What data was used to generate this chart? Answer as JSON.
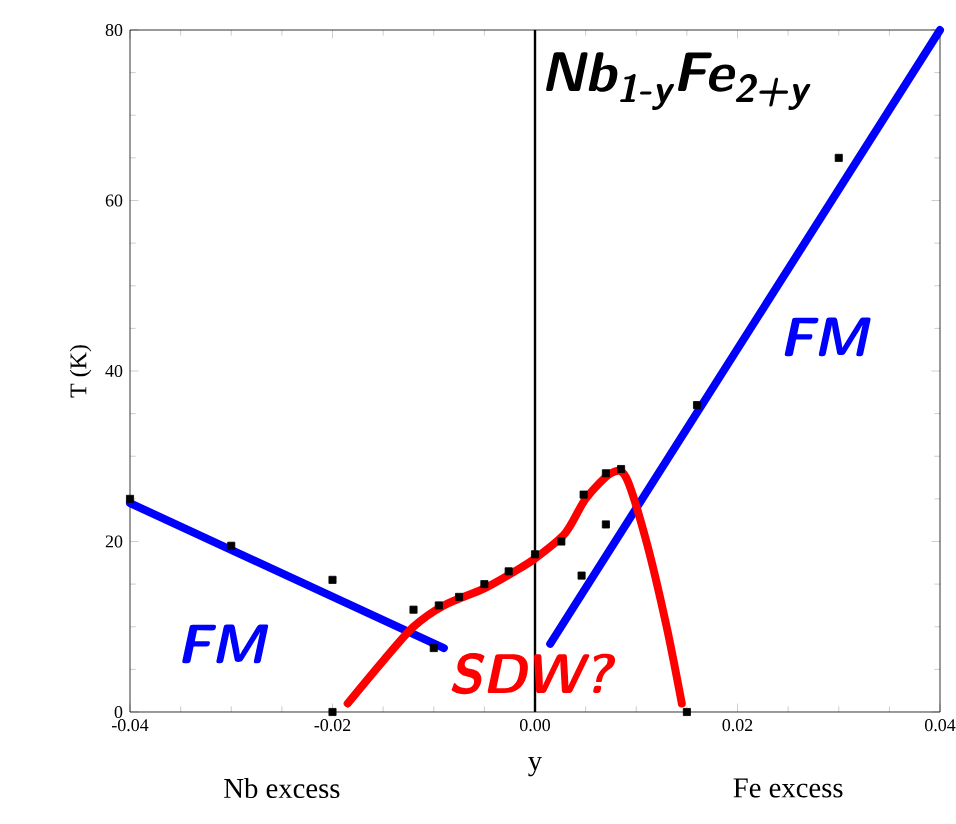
{
  "chart_data": {
    "type": "line",
    "xlabel": "y",
    "ylabel": "T (K)",
    "annotations": [
      "Nb excess",
      "Fe excess",
      "Nb$_{1-y}$Fe$_{2+y}$"
    ],
    "xlim": [
      -0.04,
      0.04
    ],
    "ylim": [
      0,
      80
    ],
    "xticks": [
      {
        "value": -0.04,
        "label": "-0.04"
      },
      {
        "value": -0.02,
        "label": "-0.02"
      },
      {
        "value": 0,
        "label": "0.00"
      },
      {
        "value": 0.02,
        "label": "0.02"
      },
      {
        "value": 0.04,
        "label": "0.04"
      }
    ],
    "yticks": [
      0,
      20,
      40,
      60,
      80
    ],
    "ref_lines": [
      {
        "axis": "x",
        "value": 0,
        "color": "#000000"
      }
    ],
    "series": [
      {
        "type": "scatter",
        "color": "#000000",
        "marker": "square",
        "x": [
          -0.04,
          -0.03,
          -0.02,
          -0.012,
          -0.01,
          -0.0095,
          -0.0075,
          -0.005,
          -0.0026,
          0,
          0.0026,
          0.0046,
          0.0048,
          0.007,
          0.007,
          0.0085,
          0.016,
          0.03,
          -0.02,
          0.015
        ],
        "values": [
          25,
          19.5,
          15.5,
          12,
          7.5,
          12.5,
          13.5,
          15,
          16.5,
          18.5,
          20,
          16,
          25.5,
          22,
          28,
          28.5,
          36,
          65,
          0,
          0
        ]
      },
      {
        "name": "FM",
        "color": "#0000ff",
        "x": [
          -0.04,
          -0.009
        ],
        "values": [
          24.5,
          7.5
        ]
      },
      {
        "name": "FM",
        "color": "#0000ff",
        "x": [
          0.0015,
          0.04
        ],
        "values": [
          8,
          80
        ]
      },
      {
        "name": "SDW?",
        "color": "#ff0000",
        "x": [
          -0.0185,
          -0.015,
          -0.012,
          -0.009,
          -0.005,
          -0.002,
          0,
          0.003,
          0.005,
          0.0075,
          0.009,
          0.011,
          0.013,
          0.0145
        ],
        "values": [
          1,
          6,
          10,
          12.5,
          14.5,
          16.5,
          18,
          21,
          25,
          28,
          27.5,
          20,
          10,
          1
        ]
      }
    ]
  }
}
